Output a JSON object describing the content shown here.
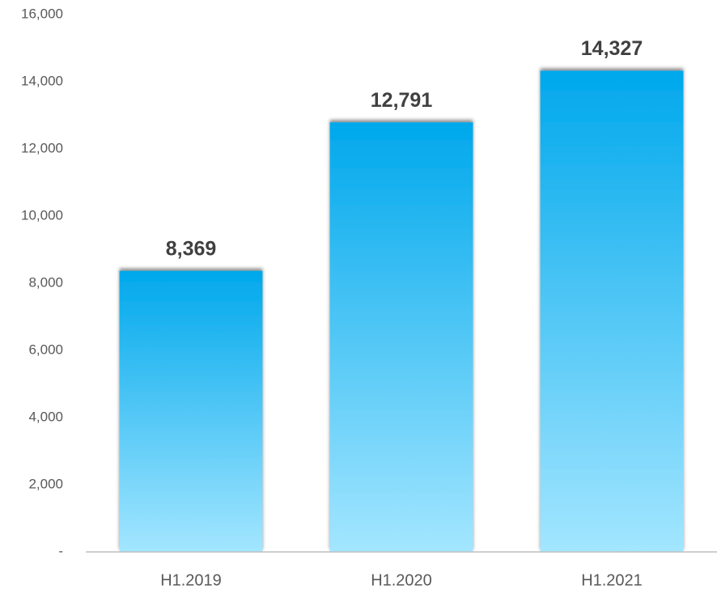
{
  "chart_data": {
    "type": "bar",
    "categories": [
      "H1.2019",
      "H1.2020",
      "H1.2021"
    ],
    "values": [
      8369,
      12791,
      14327
    ],
    "value_labels": [
      "8,369",
      "12,791",
      "14,327"
    ],
    "color": "#00a8ec",
    "ylim": [
      0,
      16000
    ],
    "yticks": [
      {
        "value": 0,
        "label": "-"
      },
      {
        "value": 2000,
        "label": "2,000"
      },
      {
        "value": 4000,
        "label": "4,000"
      },
      {
        "value": 6000,
        "label": "6,000"
      },
      {
        "value": 8000,
        "label": "8,000"
      },
      {
        "value": 10000,
        "label": "10,000"
      },
      {
        "value": 12000,
        "label": "12,000"
      },
      {
        "value": 14000,
        "label": "14,000"
      },
      {
        "value": 16000,
        "label": "16,000"
      }
    ],
    "grid": false
  }
}
